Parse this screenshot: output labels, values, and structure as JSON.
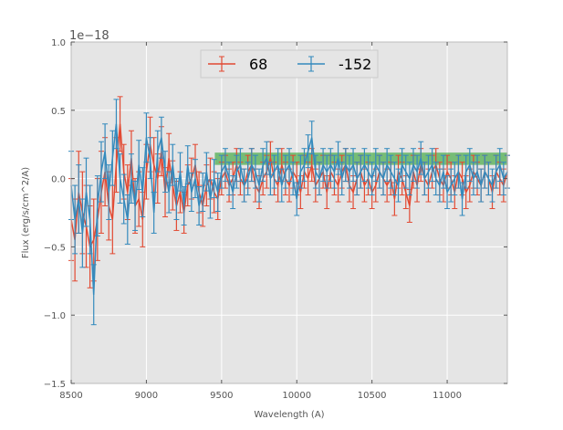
{
  "chart_data": {
    "type": "line",
    "title": "",
    "offset_text": "1e−18",
    "xlabel": "Wavelength (A)",
    "ylabel": "Flux (erg/s/cm^2/A)",
    "xlim": [
      8500,
      11400
    ],
    "ylim": [
      -1.5,
      1.0
    ],
    "y_scale_factor": 1e-18,
    "xticks": [
      8500,
      9000,
      9500,
      10000,
      10500,
      11000
    ],
    "xtick_labels": [
      "8500",
      "9000",
      "9500",
      "10000",
      "10500",
      "11000"
    ],
    "yticks": [
      -1.5,
      -1.0,
      -0.5,
      0.0,
      0.5,
      1.0
    ],
    "ytick_labels": [
      "−1.5",
      "−1.0",
      "−0.5",
      "0.0",
      "0.5",
      "1.0"
    ],
    "grid": true,
    "background": "#e5e5e5",
    "legend": {
      "position": "top-center",
      "entries": [
        "68",
        "-152"
      ]
    },
    "shaded_band": {
      "x_start": 9455,
      "x_end": 11400,
      "y_low": 0.1,
      "y_high": 0.19,
      "color": "#2ca02c"
    },
    "series": [
      {
        "name": "68",
        "color": "#e24a33",
        "x": [
          8500,
          8525,
          8550,
          8575,
          8600,
          8625,
          8650,
          8675,
          8700,
          8725,
          8750,
          8775,
          8800,
          8825,
          8850,
          8875,
          8900,
          8925,
          8950,
          8975,
          9000,
          9025,
          9050,
          9075,
          9100,
          9125,
          9150,
          9175,
          9200,
          9225,
          9250,
          9275,
          9300,
          9325,
          9350,
          9375,
          9400,
          9425,
          9450,
          9475,
          9500,
          9525,
          9550,
          9575,
          9600,
          9625,
          9650,
          9675,
          9700,
          9725,
          9750,
          9775,
          9800,
          9825,
          9850,
          9875,
          9900,
          9925,
          9950,
          9975,
          10000,
          10025,
          10050,
          10075,
          10100,
          10125,
          10150,
          10175,
          10200,
          10225,
          10250,
          10275,
          10300,
          10325,
          10350,
          10375,
          10400,
          10425,
          10450,
          10475,
          10500,
          10525,
          10550,
          10575,
          10600,
          10625,
          10650,
          10675,
          10700,
          10725,
          10750,
          10775,
          10800,
          10825,
          10850,
          10875,
          10900,
          10925,
          10950,
          10975,
          11000,
          11025,
          11050,
          11075,
          11100,
          11125,
          11150,
          11175,
          11200,
          11225,
          11250,
          11275,
          11300,
          11325,
          11350,
          11375,
          11400
        ],
        "values": [
          -0.3,
          -0.45,
          -0.1,
          -0.25,
          -0.35,
          -0.5,
          -0.45,
          -0.3,
          -0.1,
          0.05,
          -0.2,
          -0.3,
          0.1,
          0.4,
          0.05,
          -0.1,
          0.15,
          -0.2,
          -0.15,
          -0.3,
          0.05,
          0.25,
          0.1,
          0.0,
          0.2,
          -0.1,
          0.15,
          -0.05,
          -0.2,
          -0.1,
          -0.25,
          -0.05,
          0.0,
          0.1,
          -0.1,
          -0.2,
          -0.05,
          0.0,
          -0.1,
          -0.15,
          0.0,
          0.05,
          -0.05,
          0.0,
          0.1,
          0.0,
          -0.05,
          0.05,
          0.1,
          -0.05,
          -0.1,
          0.0,
          0.05,
          0.15,
          0.0,
          -0.05,
          0.1,
          0.0,
          -0.05,
          0.05,
          0.0,
          -0.1,
          0.05,
          0.0,
          0.1,
          -0.05,
          0.0,
          0.05,
          -0.1,
          0.05,
          0.0,
          -0.05,
          0.05,
          0.1,
          -0.05,
          -0.1,
          0.0,
          0.05,
          -0.05,
          0.0,
          -0.1,
          -0.05,
          0.05,
          0.0,
          -0.05,
          0.0,
          -0.15,
          0.05,
          0.0,
          -0.1,
          -0.2,
          0.05,
          -0.05,
          0.1,
          0.0,
          -0.05,
          0.05,
          0.1,
          0.0,
          -0.05,
          0.05,
          0.0,
          -0.1,
          0.05,
          0.0,
          -0.1,
          -0.05,
          0.05,
          0.0,
          -0.05,
          0.05,
          0.0,
          -0.1,
          0.05,
          0.0,
          -0.05,
          0.05
        ],
        "errors": [
          0.3,
          0.3,
          0.3,
          0.3,
          0.3,
          0.3,
          0.3,
          0.3,
          0.3,
          0.25,
          0.25,
          0.25,
          0.2,
          0.2,
          0.2,
          0.2,
          0.2,
          0.2,
          0.2,
          0.2,
          0.2,
          0.2,
          0.2,
          0.18,
          0.18,
          0.18,
          0.18,
          0.18,
          0.18,
          0.15,
          0.15,
          0.15,
          0.15,
          0.15,
          0.15,
          0.15,
          0.15,
          0.15,
          0.15,
          0.15,
          0.12,
          0.12,
          0.12,
          0.12,
          0.12,
          0.12,
          0.12,
          0.12,
          0.12,
          0.12,
          0.12,
          0.12,
          0.12,
          0.12,
          0.12,
          0.12,
          0.12,
          0.12,
          0.12,
          0.12,
          0.12,
          0.12,
          0.12,
          0.12,
          0.12,
          0.12,
          0.12,
          0.12,
          0.12,
          0.12,
          0.12,
          0.12,
          0.12,
          0.12,
          0.12,
          0.12,
          0.12,
          0.12,
          0.12,
          0.12,
          0.12,
          0.12,
          0.12,
          0.12,
          0.12,
          0.12,
          0.12,
          0.12,
          0.12,
          0.12,
          0.12,
          0.12,
          0.12,
          0.12,
          0.12,
          0.12,
          0.12,
          0.12,
          0.12,
          0.12,
          0.12,
          0.12,
          0.12,
          0.12,
          0.12,
          0.12,
          0.12,
          0.12,
          0.12,
          0.12,
          0.12,
          0.12,
          0.12,
          0.12,
          0.12,
          0.12,
          0.12
        ]
      },
      {
        "name": "-152",
        "color": "#348abd",
        "x": [
          8500,
          8525,
          8550,
          8575,
          8600,
          8625,
          8650,
          8675,
          8700,
          8725,
          8750,
          8775,
          8800,
          8825,
          8850,
          8875,
          8900,
          8925,
          8950,
          8975,
          9000,
          9025,
          9050,
          9075,
          9100,
          9125,
          9150,
          9175,
          9200,
          9225,
          9250,
          9275,
          9300,
          9325,
          9350,
          9375,
          9400,
          9425,
          9450,
          9475,
          9500,
          9525,
          9550,
          9575,
          9600,
          9625,
          9650,
          9675,
          9700,
          9725,
          9750,
          9775,
          9800,
          9825,
          9850,
          9875,
          9900,
          9925,
          9950,
          9975,
          10000,
          10025,
          10050,
          10075,
          10100,
          10125,
          10150,
          10175,
          10200,
          10225,
          10250,
          10275,
          10300,
          10325,
          10350,
          10375,
          10400,
          10425,
          10450,
          10475,
          10500,
          10525,
          10550,
          10575,
          10600,
          10625,
          10650,
          10675,
          10700,
          10725,
          10750,
          10775,
          10800,
          10825,
          10850,
          10875,
          10900,
          10925,
          10950,
          10975,
          11000,
          11025,
          11050,
          11075,
          11100,
          11125,
          11150,
          11175,
          11200,
          11225,
          11250,
          11275,
          11300,
          11325,
          11350,
          11375,
          11400
        ],
        "values": [
          -0.05,
          -0.3,
          -0.15,
          -0.4,
          -0.1,
          -0.3,
          -0.85,
          -0.2,
          0.05,
          0.2,
          -0.1,
          0.15,
          0.4,
          0.0,
          -0.15,
          -0.3,
          0.0,
          -0.2,
          0.1,
          -0.1,
          0.3,
          0.15,
          -0.25,
          0.2,
          0.3,
          0.05,
          -0.1,
          0.1,
          -0.15,
          0.05,
          -0.2,
          0.1,
          -0.1,
          0.0,
          -0.2,
          -0.1,
          0.05,
          -0.15,
          0.0,
          -0.1,
          0.05,
          0.1,
          0.0,
          -0.1,
          0.05,
          0.1,
          -0.05,
          0.0,
          0.1,
          0.05,
          -0.05,
          0.1,
          0.15,
          0.0,
          0.05,
          0.1,
          -0.05,
          0.05,
          0.1,
          0.0,
          -0.15,
          0.05,
          0.1,
          0.2,
          0.3,
          0.05,
          0.0,
          0.1,
          0.05,
          0.1,
          0.05,
          0.15,
          0.0,
          0.1,
          0.05,
          0.1,
          0.0,
          0.05,
          0.1,
          0.05,
          0.0,
          0.1,
          0.05,
          0.0,
          0.1,
          0.05,
          0.0,
          -0.05,
          0.1,
          0.05,
          0.0,
          0.1,
          0.05,
          0.15,
          0.0,
          0.05,
          0.1,
          0.0,
          -0.05,
          0.05,
          -0.1,
          -0.05,
          0.0,
          0.05,
          -0.15,
          0.05,
          0.1,
          0.0,
          0.05,
          -0.05,
          0.05,
          0.0,
          -0.05,
          0.05,
          0.1,
          0.0,
          0.05
        ],
        "errors": [
          0.25,
          0.25,
          0.25,
          0.25,
          0.25,
          0.25,
          0.22,
          0.22,
          0.22,
          0.2,
          0.2,
          0.2,
          0.18,
          0.18,
          0.18,
          0.18,
          0.18,
          0.18,
          0.18,
          0.18,
          0.18,
          0.15,
          0.15,
          0.15,
          0.15,
          0.15,
          0.15,
          0.15,
          0.15,
          0.14,
          0.14,
          0.14,
          0.14,
          0.14,
          0.14,
          0.14,
          0.14,
          0.14,
          0.14,
          0.14,
          0.12,
          0.12,
          0.12,
          0.12,
          0.12,
          0.12,
          0.12,
          0.12,
          0.12,
          0.12,
          0.12,
          0.12,
          0.12,
          0.12,
          0.12,
          0.12,
          0.12,
          0.12,
          0.12,
          0.12,
          0.12,
          0.12,
          0.12,
          0.12,
          0.12,
          0.12,
          0.12,
          0.12,
          0.12,
          0.12,
          0.12,
          0.12,
          0.12,
          0.12,
          0.12,
          0.12,
          0.12,
          0.12,
          0.12,
          0.12,
          0.12,
          0.12,
          0.12,
          0.12,
          0.12,
          0.12,
          0.12,
          0.12,
          0.12,
          0.12,
          0.12,
          0.12,
          0.12,
          0.12,
          0.12,
          0.12,
          0.12,
          0.12,
          0.12,
          0.12,
          0.12,
          0.12,
          0.12,
          0.12,
          0.12,
          0.12,
          0.12,
          0.12,
          0.12,
          0.12,
          0.12,
          0.12,
          0.12,
          0.12,
          0.12,
          0.12,
          0.12
        ]
      }
    ]
  }
}
